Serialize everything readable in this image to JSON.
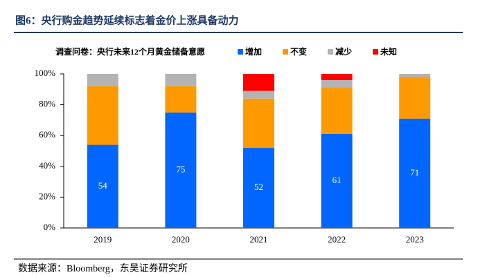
{
  "chart_data": {
    "type": "stacked_bar",
    "title": "图6：央行购金趋势延续标志着金价上涨具备动力",
    "subtitle": "调查问卷：央行未来12个月黄金储备意愿",
    "source": "数据来源：Bloomberg，东吴证券研究所",
    "categories": [
      "2019",
      "2020",
      "2021",
      "2022",
      "2023"
    ],
    "series": [
      {
        "name": "增加",
        "color": "#0066ff",
        "values": [
          54,
          75,
          52,
          61,
          71
        ]
      },
      {
        "name": "不变",
        "color": "#ff9900",
        "values": [
          38,
          17,
          32,
          30,
          27
        ]
      },
      {
        "name": "减少",
        "color": "#b3b3b3",
        "values": [
          8,
          8,
          5,
          5,
          2
        ]
      },
      {
        "name": "未知",
        "color": "#ff0000",
        "values": [
          0,
          0,
          11,
          4,
          0
        ]
      }
    ],
    "ylim": [
      0,
      100
    ],
    "yticks": [
      {
        "value": 0,
        "label": "0%"
      },
      {
        "value": 20,
        "label": "20%"
      },
      {
        "value": 40,
        "label": "40%"
      },
      {
        "value": 60,
        "label": "60%"
      },
      {
        "value": 80,
        "label": "80%"
      },
      {
        "value": 100,
        "label": "100%"
      }
    ]
  }
}
